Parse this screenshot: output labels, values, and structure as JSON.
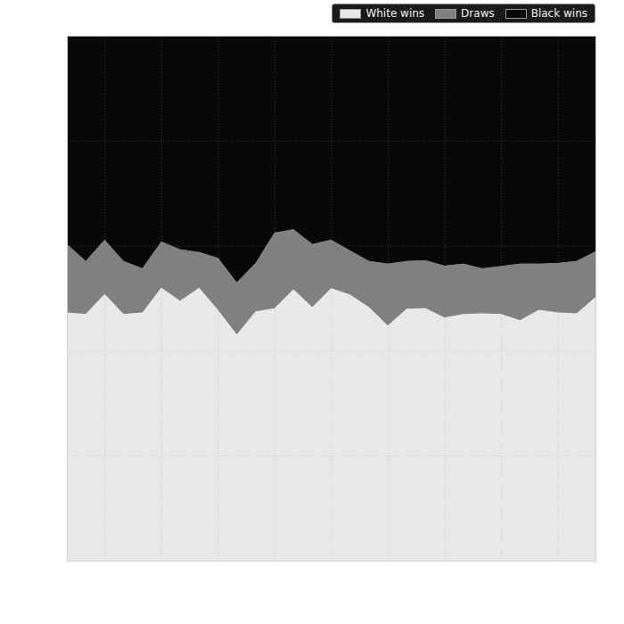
{
  "chart_data": {
    "type": "area",
    "stacked": true,
    "x": [
      0,
      1,
      2,
      3,
      4,
      5,
      6,
      7,
      8,
      9,
      10,
      11,
      12,
      13,
      14,
      15,
      16,
      17,
      18,
      19,
      20,
      21,
      22,
      23,
      24,
      25,
      26,
      27,
      28
    ],
    "series": [
      {
        "name": "White wins",
        "color": "#e8e8e8",
        "values": [
          47.3,
          47.0,
          50.8,
          47.0,
          47.3,
          52.0,
          49.5,
          52.0,
          47.8,
          43.1,
          47.5,
          48.1,
          51.7,
          48.3,
          51.9,
          50.7,
          48.3,
          44.8,
          48.0,
          48.1,
          46.3,
          47.0,
          47.1,
          47.0,
          45.8,
          47.8,
          47.3,
          47.1,
          50.2
        ]
      },
      {
        "name": "Draws",
        "color": "#808080",
        "values": [
          13.0,
          10.1,
          10.3,
          10.1,
          8.4,
          8.8,
          9.8,
          6.8,
          9.9,
          9.9,
          9.2,
          14.4,
          11.4,
          12.0,
          9.2,
          8.4,
          8.8,
          11.8,
          9.1,
          9.1,
          9.9,
          9.6,
          8.6,
          9.1,
          10.8,
          8.8,
          9.4,
          10.0,
          8.7
        ]
      },
      {
        "name": "Black wins",
        "color": "#080808",
        "values": [
          39.7,
          42.9,
          38.9,
          42.9,
          44.3,
          39.2,
          40.7,
          41.2,
          42.3,
          47.0,
          43.3,
          37.5,
          36.9,
          39.7,
          38.9,
          40.9,
          42.9,
          43.4,
          42.9,
          42.8,
          43.8,
          43.4,
          44.3,
          43.9,
          43.4,
          43.4,
          43.3,
          42.9,
          41.1
        ]
      }
    ],
    "xlim": [
      0,
      28
    ],
    "ylim": [
      0,
      100
    ],
    "xticks": [
      2,
      5,
      8,
      11,
      14,
      17,
      20,
      23,
      26
    ],
    "yticks": [
      0,
      20,
      40,
      60,
      80,
      100
    ],
    "grid": true,
    "tick_labels": false,
    "legend": "top-right"
  }
}
